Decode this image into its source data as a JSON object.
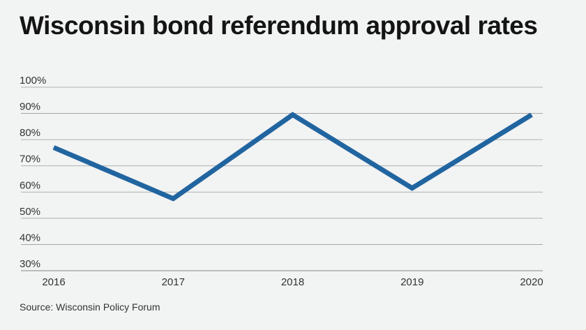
{
  "title": "Wisconsin bond referendum approval rates",
  "source": "Source: Wisconsin Policy Forum",
  "colors": {
    "line": "#2165a0",
    "grid": "#9a9a9a",
    "background": "#f2f3f3"
  },
  "chart_data": {
    "type": "line",
    "title": "Wisconsin bond referendum approval rates",
    "xlabel": "",
    "ylabel": "",
    "x": [
      "2016",
      "2017",
      "2018",
      "2019",
      "2020"
    ],
    "series": [
      {
        "values": [
          77,
          57.5,
          89.5,
          61.5,
          89.5
        ]
      }
    ],
    "ylim": [
      30,
      100
    ],
    "yticks": [
      100,
      90,
      80,
      70,
      60,
      50,
      40,
      30
    ],
    "ytick_labels": [
      "100%",
      "90%",
      "80%",
      "70%",
      "60%",
      "50%",
      "40%",
      "30%"
    ],
    "grid": true,
    "legend": "none"
  }
}
